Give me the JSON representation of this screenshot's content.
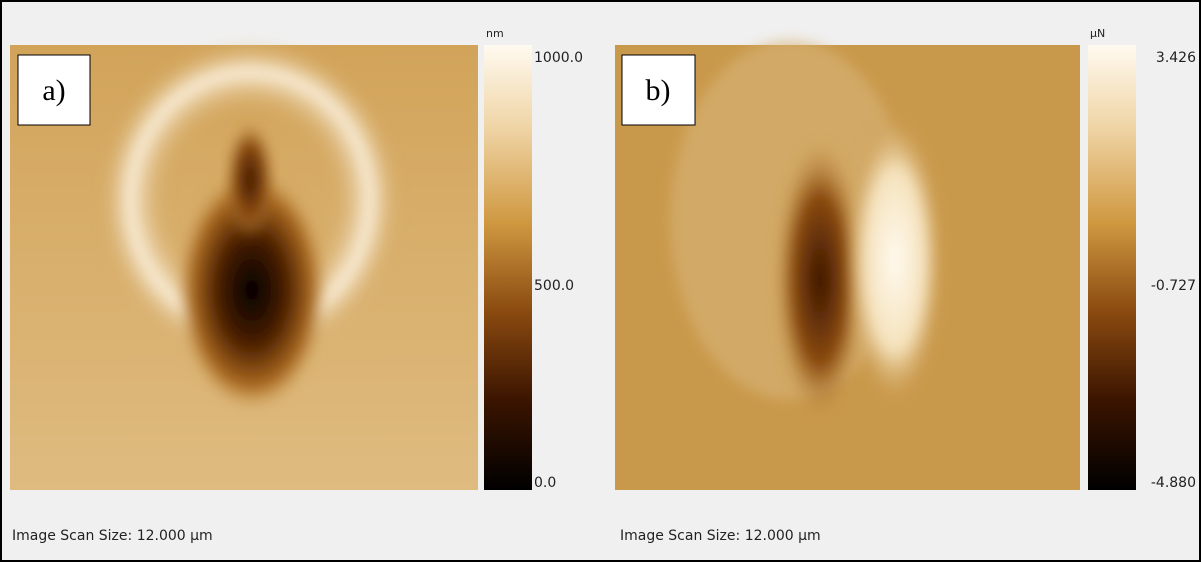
{
  "panels": [
    {
      "label": "a)",
      "unit": "nm",
      "colorbar_labels": [
        "1000.0",
        "500.0",
        "0.0"
      ],
      "scan_size": "Image Scan Size: 12.000 µm"
    },
    {
      "label": "b)",
      "unit": "µN",
      "colorbar_labels": [
        "3.426",
        "-0.727",
        "-4.880"
      ],
      "scan_size": "Image Scan Size: 12.000 µm"
    }
  ]
}
